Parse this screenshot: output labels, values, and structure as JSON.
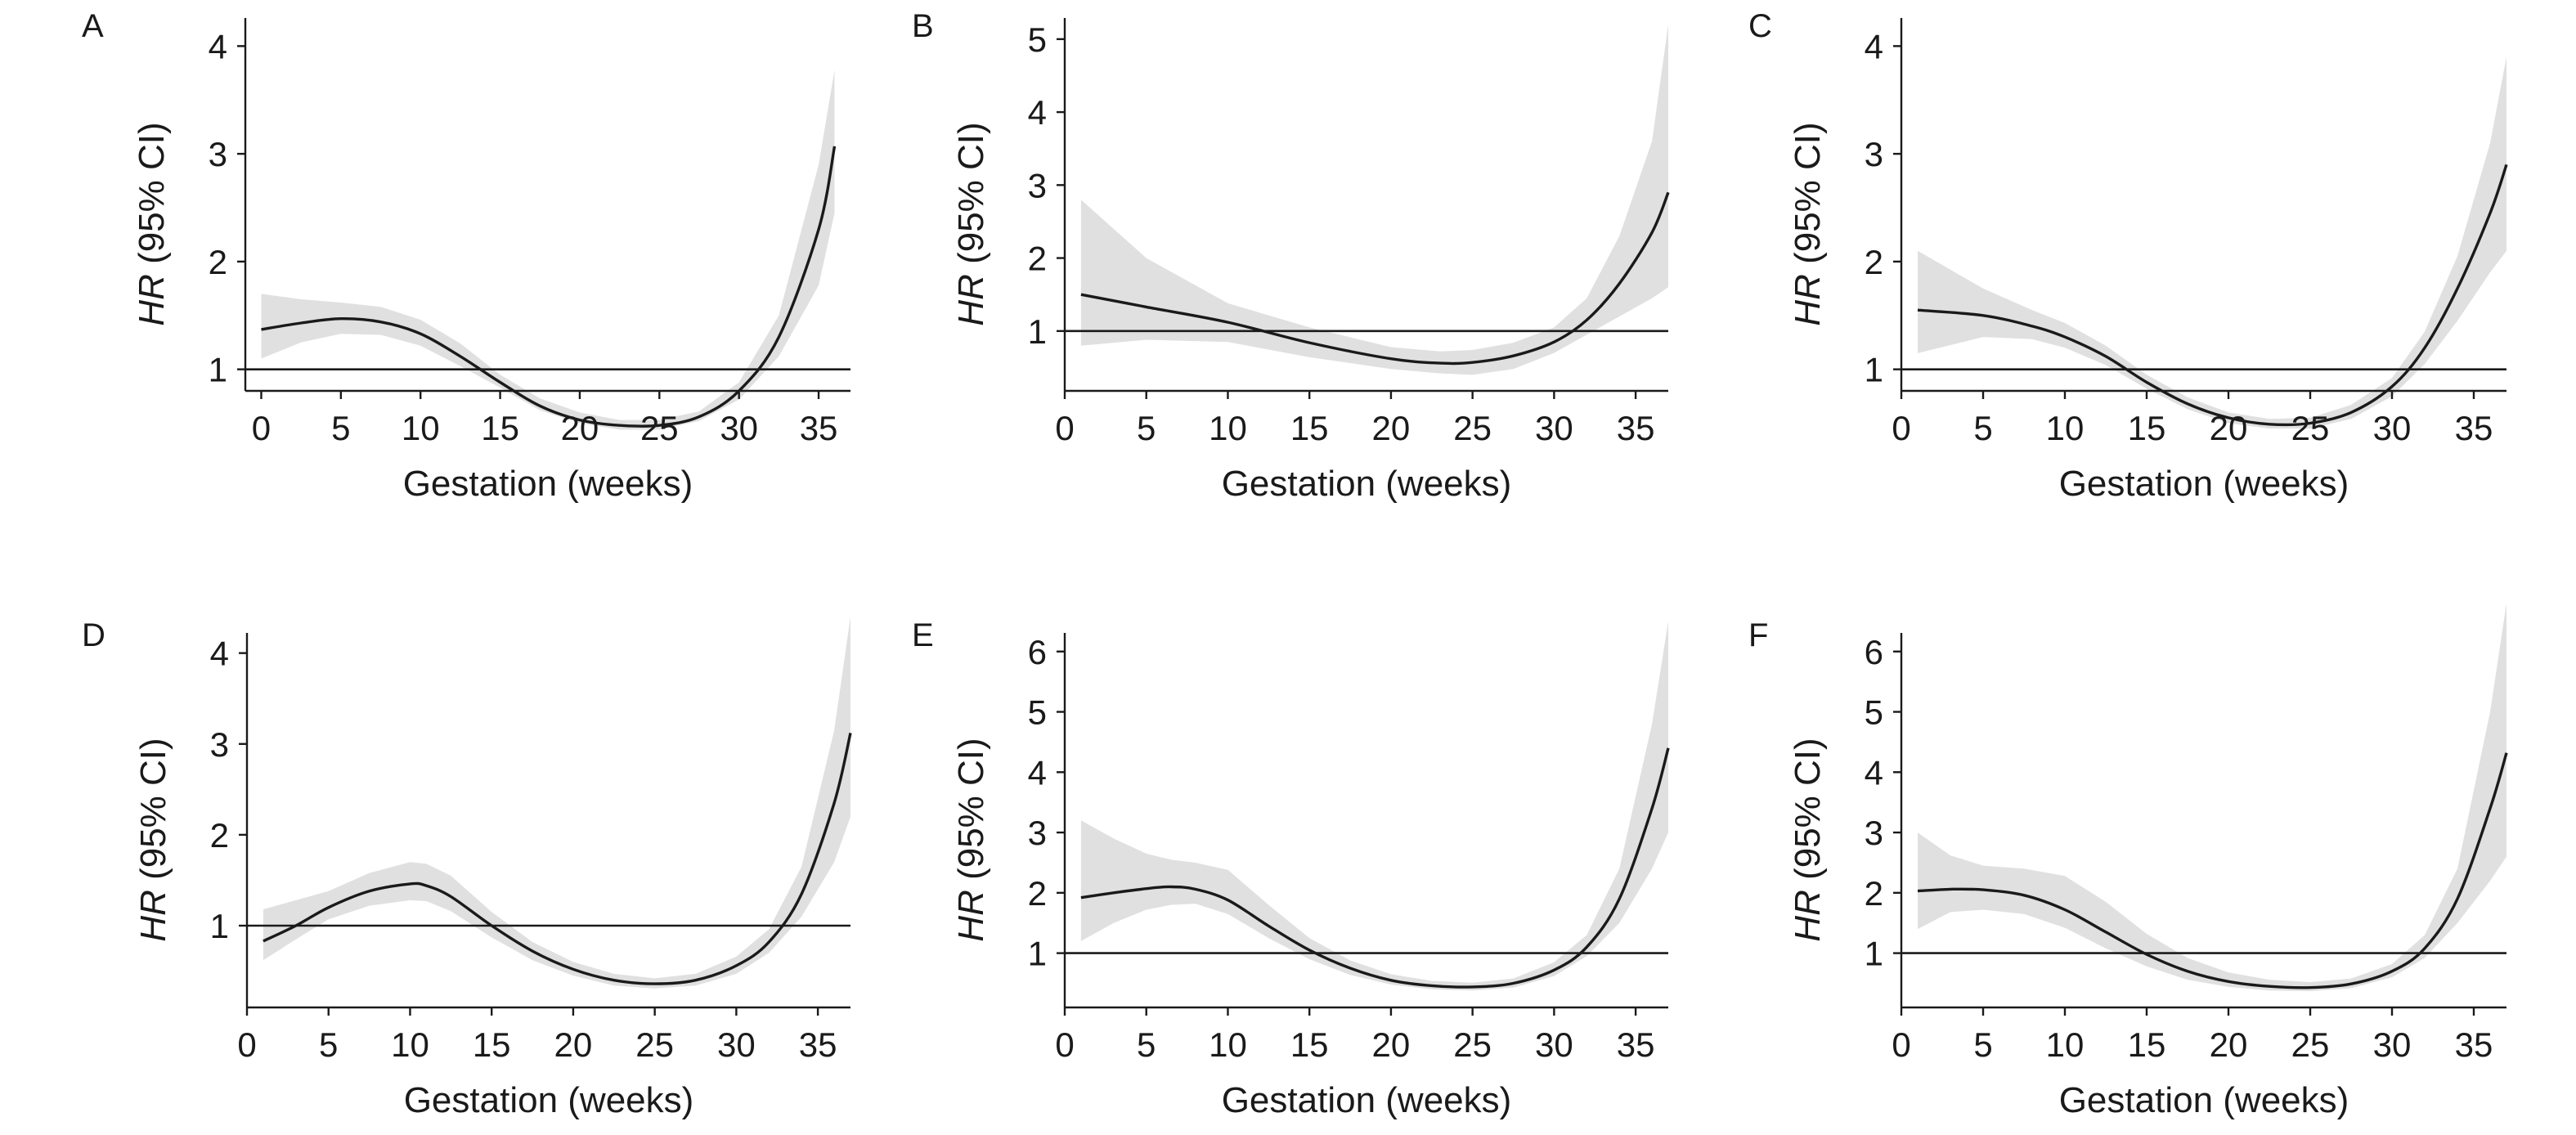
{
  "chart_data": [
    {
      "panel": "A",
      "type": "line",
      "xlabel": "Gestation (weeks)",
      "ylabel_italic": "HR",
      "ylabel_rest": " (95% CI)",
      "xlim": [
        -1,
        37
      ],
      "ylim": [
        0.8,
        4.2
      ],
      "xticks": [
        0,
        5,
        10,
        15,
        20,
        25,
        30,
        35
      ],
      "yticks": [
        1,
        2,
        3,
        4
      ],
      "reference_y": 1,
      "series": [
        {
          "x": [
            0,
            2.5,
            5,
            7.5,
            10,
            12.5,
            15,
            17.5,
            20,
            22.5,
            25,
            27.5,
            30,
            32.5,
            35,
            36
          ],
          "y": [
            1.37,
            1.43,
            1.47,
            1.44,
            1.33,
            1.12,
            0.88,
            0.66,
            0.53,
            0.48,
            0.48,
            0.56,
            0.8,
            1.3,
            2.3,
            3.07
          ],
          "lower": [
            1.1,
            1.25,
            1.33,
            1.32,
            1.22,
            1.03,
            0.83,
            0.62,
            0.5,
            0.44,
            0.44,
            0.52,
            0.72,
            1.12,
            1.78,
            2.45
          ],
          "upper": [
            1.7,
            1.65,
            1.62,
            1.58,
            1.46,
            1.24,
            0.95,
            0.73,
            0.6,
            0.53,
            0.53,
            0.61,
            0.88,
            1.5,
            2.9,
            3.78
          ]
        }
      ]
    },
    {
      "panel": "B",
      "type": "line",
      "xlabel": "Gestation (weeks)",
      "ylabel_italic": "HR",
      "ylabel_rest": " (95% CI)",
      "xlim": [
        0,
        37
      ],
      "ylim": [
        0.18,
        5.2
      ],
      "xticks": [
        0,
        5,
        10,
        15,
        20,
        25,
        30,
        35
      ],
      "yticks": [
        1,
        2,
        3,
        4,
        5
      ],
      "reference_y": 1,
      "series": [
        {
          "x": [
            1,
            5,
            10,
            15,
            20,
            23,
            25,
            27.5,
            30,
            32,
            34,
            36,
            37
          ],
          "y": [
            1.5,
            1.33,
            1.12,
            0.84,
            0.62,
            0.56,
            0.57,
            0.66,
            0.85,
            1.15,
            1.65,
            2.35,
            2.9
          ],
          "lower": [
            0.8,
            0.88,
            0.85,
            0.64,
            0.48,
            0.42,
            0.4,
            0.48,
            0.7,
            0.95,
            1.2,
            1.45,
            1.6
          ],
          "upper": [
            2.8,
            2.0,
            1.38,
            1.05,
            0.78,
            0.72,
            0.74,
            0.84,
            1.05,
            1.45,
            2.3,
            3.6,
            5.2
          ]
        }
      ]
    },
    {
      "panel": "C",
      "type": "line",
      "xlabel": "Gestation (weeks)",
      "ylabel_italic": "HR",
      "ylabel_rest": " (95% CI)",
      "xlim": [
        0,
        37
      ],
      "ylim": [
        0.8,
        4.2
      ],
      "xticks": [
        0,
        5,
        10,
        15,
        20,
        25,
        30,
        35
      ],
      "yticks": [
        1,
        2,
        3,
        4
      ],
      "reference_y": 1,
      "series": [
        {
          "x": [
            1,
            5,
            8,
            10,
            12.5,
            15,
            17.5,
            20,
            22.5,
            25,
            27.5,
            30,
            32,
            34,
            36,
            37
          ],
          "y": [
            1.55,
            1.5,
            1.4,
            1.3,
            1.12,
            0.88,
            0.68,
            0.55,
            0.49,
            0.5,
            0.6,
            0.84,
            1.2,
            1.75,
            2.45,
            2.9
          ],
          "lower": [
            1.15,
            1.3,
            1.28,
            1.2,
            1.04,
            0.82,
            0.63,
            0.5,
            0.45,
            0.45,
            0.54,
            0.75,
            1.05,
            1.45,
            1.9,
            2.1
          ],
          "upper": [
            2.1,
            1.75,
            1.55,
            1.43,
            1.22,
            0.95,
            0.74,
            0.6,
            0.54,
            0.55,
            0.67,
            0.92,
            1.35,
            2.05,
            3.1,
            3.9
          ]
        }
      ]
    },
    {
      "panel": "D",
      "type": "line",
      "xlabel": "Gestation (weeks)",
      "ylabel_italic": "HR",
      "ylabel_rest": " (95% CI)",
      "xlim": [
        0,
        37
      ],
      "ylim": [
        0.1,
        4.15
      ],
      "xticks": [
        0,
        5,
        10,
        15,
        20,
        25,
        30,
        35
      ],
      "yticks": [
        1,
        2,
        3,
        4
      ],
      "reference_y": 1,
      "series": [
        {
          "x": [
            1,
            3,
            5,
            7.5,
            10,
            11,
            12.5,
            15,
            17.5,
            20,
            22.5,
            25,
            27.5,
            30,
            32,
            34,
            36,
            37
          ],
          "y": [
            0.83,
            1.0,
            1.2,
            1.38,
            1.46,
            1.44,
            1.32,
            1.0,
            0.72,
            0.52,
            0.4,
            0.36,
            0.4,
            0.56,
            0.82,
            1.35,
            2.35,
            3.12
          ],
          "lower": [
            0.62,
            0.85,
            1.07,
            1.22,
            1.28,
            1.27,
            1.16,
            0.87,
            0.62,
            0.45,
            0.34,
            0.31,
            0.34,
            0.47,
            0.7,
            1.1,
            1.7,
            2.2
          ],
          "upper": [
            1.18,
            1.28,
            1.38,
            1.58,
            1.7,
            1.68,
            1.55,
            1.15,
            0.82,
            0.6,
            0.47,
            0.42,
            0.47,
            0.66,
            0.96,
            1.65,
            3.15,
            4.4
          ]
        }
      ]
    },
    {
      "panel": "E",
      "type": "line",
      "xlabel": "Gestation (weeks)",
      "ylabel_italic": "HR",
      "ylabel_rest": " (95% CI)",
      "xlim": [
        0,
        37
      ],
      "ylim": [
        0.1,
        6.2
      ],
      "xticks": [
        0,
        5,
        10,
        15,
        20,
        25,
        30,
        35
      ],
      "yticks": [
        1,
        2,
        3,
        4,
        5,
        6
      ],
      "reference_y": 1,
      "series": [
        {
          "x": [
            1,
            3,
            5,
            6.5,
            8,
            10,
            12.5,
            15,
            17.5,
            20,
            22.5,
            25,
            27.5,
            30,
            32,
            34,
            36,
            37
          ],
          "y": [
            1.92,
            2.0,
            2.07,
            2.1,
            2.06,
            1.88,
            1.45,
            1.05,
            0.75,
            0.55,
            0.46,
            0.44,
            0.5,
            0.72,
            1.1,
            1.9,
            3.4,
            4.4
          ],
          "lower": [
            1.2,
            1.5,
            1.72,
            1.8,
            1.82,
            1.65,
            1.25,
            0.9,
            0.64,
            0.48,
            0.4,
            0.38,
            0.43,
            0.62,
            0.95,
            1.5,
            2.4,
            3.0
          ],
          "upper": [
            3.2,
            2.9,
            2.65,
            2.55,
            2.5,
            2.38,
            1.8,
            1.25,
            0.88,
            0.65,
            0.54,
            0.51,
            0.58,
            0.85,
            1.3,
            2.4,
            4.8,
            6.5
          ]
        }
      ]
    },
    {
      "panel": "F",
      "type": "line",
      "xlabel": "Gestation (weeks)",
      "ylabel_italic": "HR",
      "ylabel_rest": " (95% CI)",
      "xlim": [
        0,
        37
      ],
      "ylim": [
        0.1,
        6.2
      ],
      "xticks": [
        0,
        5,
        10,
        15,
        20,
        25,
        30,
        35
      ],
      "yticks": [
        1,
        2,
        3,
        4,
        5,
        6
      ],
      "reference_y": 1,
      "series": [
        {
          "x": [
            1,
            3,
            5,
            7.5,
            10,
            12.5,
            15,
            17.5,
            20,
            22.5,
            25,
            27.5,
            30,
            32,
            34,
            36,
            37
          ],
          "y": [
            2.03,
            2.06,
            2.05,
            1.96,
            1.72,
            1.35,
            0.98,
            0.7,
            0.53,
            0.45,
            0.43,
            0.49,
            0.7,
            1.08,
            1.9,
            3.4,
            4.32
          ],
          "lower": [
            1.4,
            1.68,
            1.72,
            1.65,
            1.42,
            1.08,
            0.78,
            0.56,
            0.44,
            0.38,
            0.37,
            0.42,
            0.6,
            0.92,
            1.5,
            2.2,
            2.6
          ],
          "upper": [
            3.0,
            2.62,
            2.45,
            2.4,
            2.28,
            1.85,
            1.32,
            0.92,
            0.68,
            0.56,
            0.52,
            0.58,
            0.82,
            1.3,
            2.4,
            5.0,
            6.8
          ]
        }
      ]
    }
  ]
}
